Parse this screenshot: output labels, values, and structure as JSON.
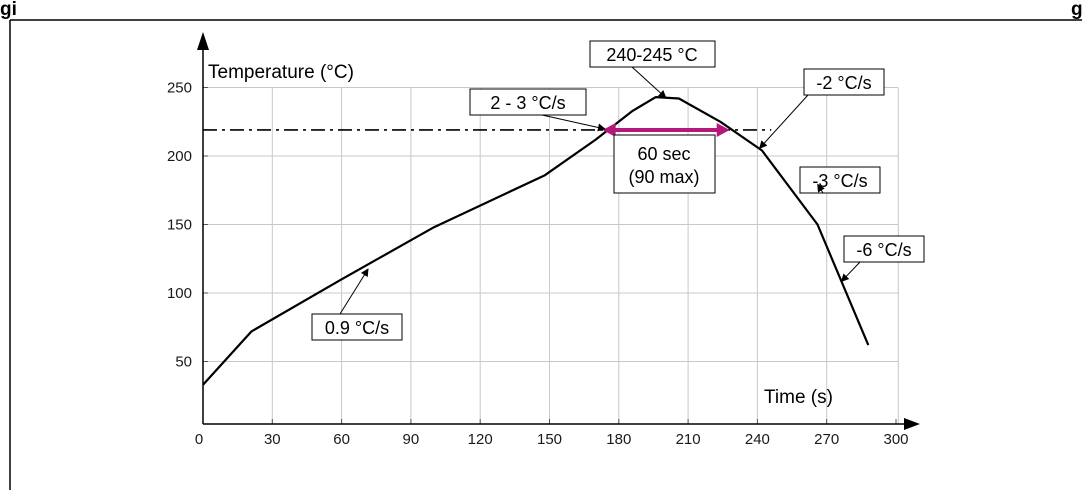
{
  "figure": {
    "caption_fragment_left": "gi",
    "caption_fragment_right": "g"
  },
  "chart_data": {
    "type": "line",
    "xlabel": "Time (s)",
    "ylabel": "Temperature (°C)",
    "x_ticks": [
      0,
      30,
      60,
      90,
      120,
      150,
      180,
      210,
      240,
      270,
      300
    ],
    "y_ticks": [
      50,
      100,
      150,
      200,
      250
    ],
    "xlim": [
      0,
      300
    ],
    "ylim": [
      20,
      260
    ],
    "grid": true,
    "series": [
      {
        "x": [
          0,
          21,
          60,
          100,
          148,
          170,
          186,
          196,
          206,
          224,
          242,
          266,
          288
        ],
        "y": [
          33,
          72,
          110,
          148,
          186,
          212,
          233,
          243,
          242,
          225,
          204,
          150,
          62
        ]
      }
    ],
    "threshold": {
      "y": 219,
      "x_start": 0,
      "x_end": 246
    },
    "time_above_span": {
      "x_start": 173,
      "x_end": 228,
      "y": 219
    },
    "annotations": [
      {
        "id": "peak",
        "text": "240-245 °C",
        "target": [
          196,
          244
        ]
      },
      {
        "id": "ramp-up",
        "text": "2 - 3 °C/s",
        "target": [
          175,
          219
        ]
      },
      {
        "id": "cool-1",
        "text": "-2 °C/s",
        "target": [
          240,
          205
        ]
      },
      {
        "id": "cool-2",
        "text": "-3 °C/s",
        "target": [
          255,
          182
        ]
      },
      {
        "id": "cool-3",
        "text": "-6 °C/s",
        "target": [
          278,
          110
        ]
      },
      {
        "id": "preheat",
        "text": "0.9 °C/s",
        "target": [
          70,
          117
        ]
      },
      {
        "id": "tal",
        "lines": [
          "60 sec",
          "(90 max)"
        ]
      }
    ],
    "colors": {
      "line": "#000000",
      "grid": "#c8c8c8",
      "span": "#b5187a"
    }
  }
}
